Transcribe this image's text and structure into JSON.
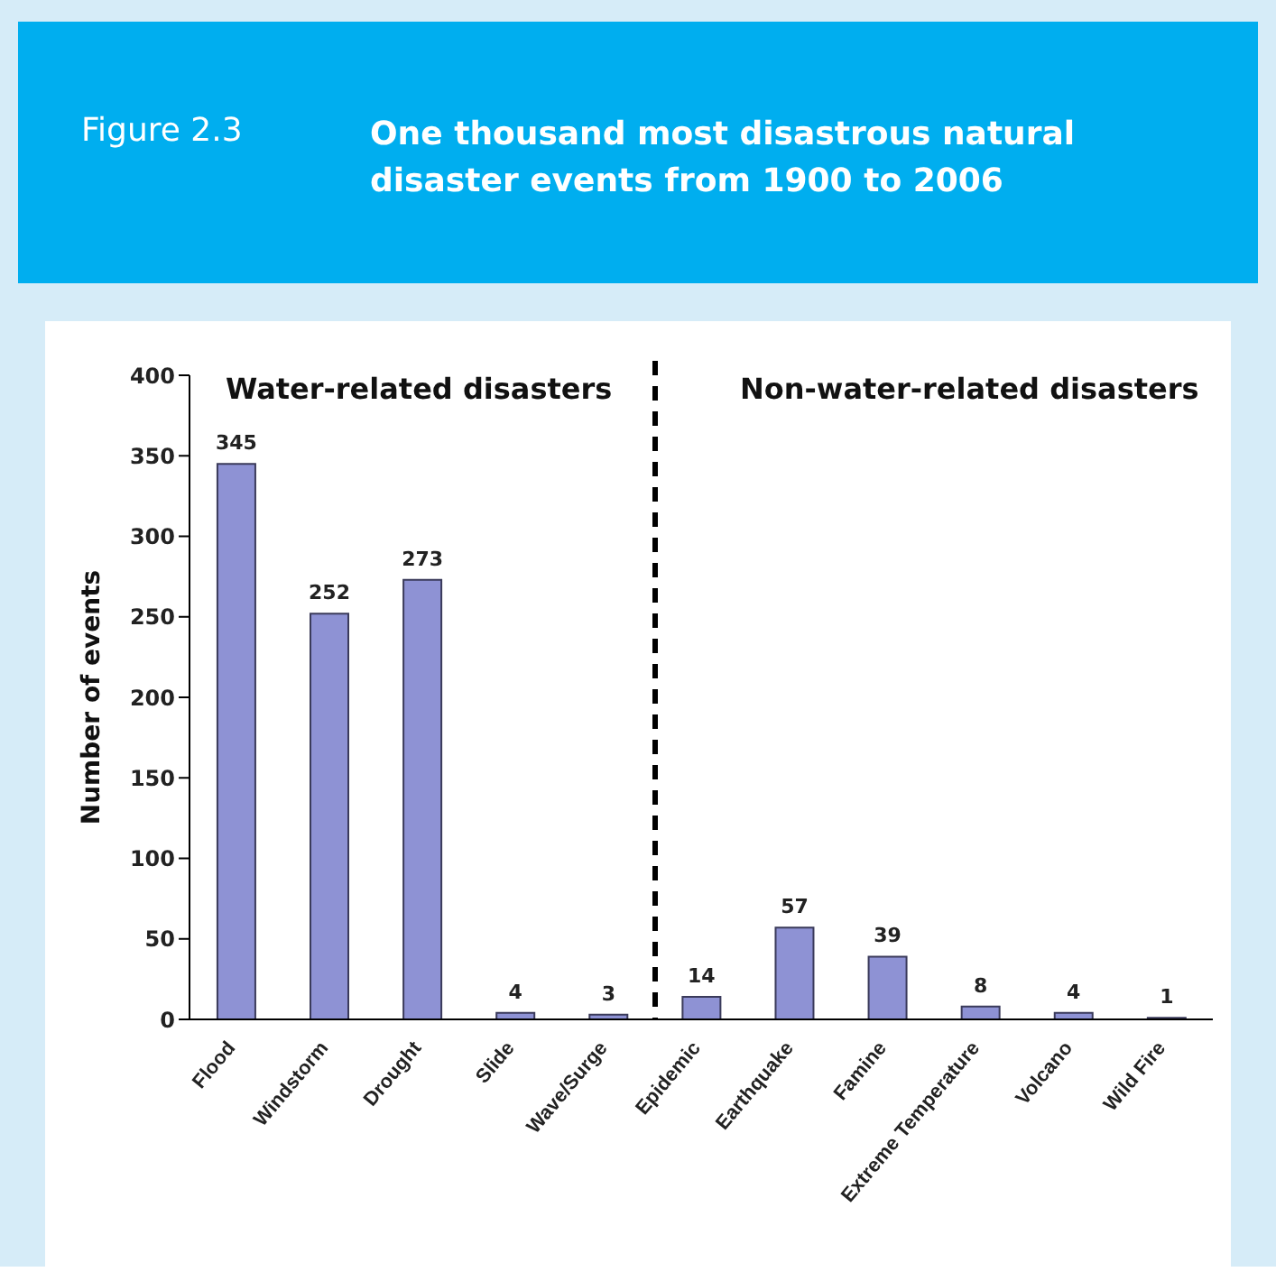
{
  "chart_data": {
    "type": "bar",
    "title": "One thousand most disastrous natural disaster events from 1900 to 2006",
    "ylabel": "Number of events",
    "annotations": [
      "Figure 2.3",
      "Water-related disasters",
      "Non-water-related disasters"
    ],
    "categories": [
      "Flood",
      "Windstorm",
      "Drought",
      "Slide",
      "Wave/Surge",
      "Epidemic",
      "Earthquake",
      "Famine",
      "Extreme Temperature",
      "Volcano",
      "Wild Fire"
    ],
    "values": [
      345,
      252,
      273,
      4,
      3,
      14,
      57,
      39,
      8,
      4,
      1
    ],
    "color": "#8e92d4",
    "ylim": [
      0,
      400
    ],
    "yticks": [
      0,
      50,
      100,
      150,
      200,
      250,
      300,
      350,
      400
    ],
    "grid": false,
    "data_labels": true
  }
}
